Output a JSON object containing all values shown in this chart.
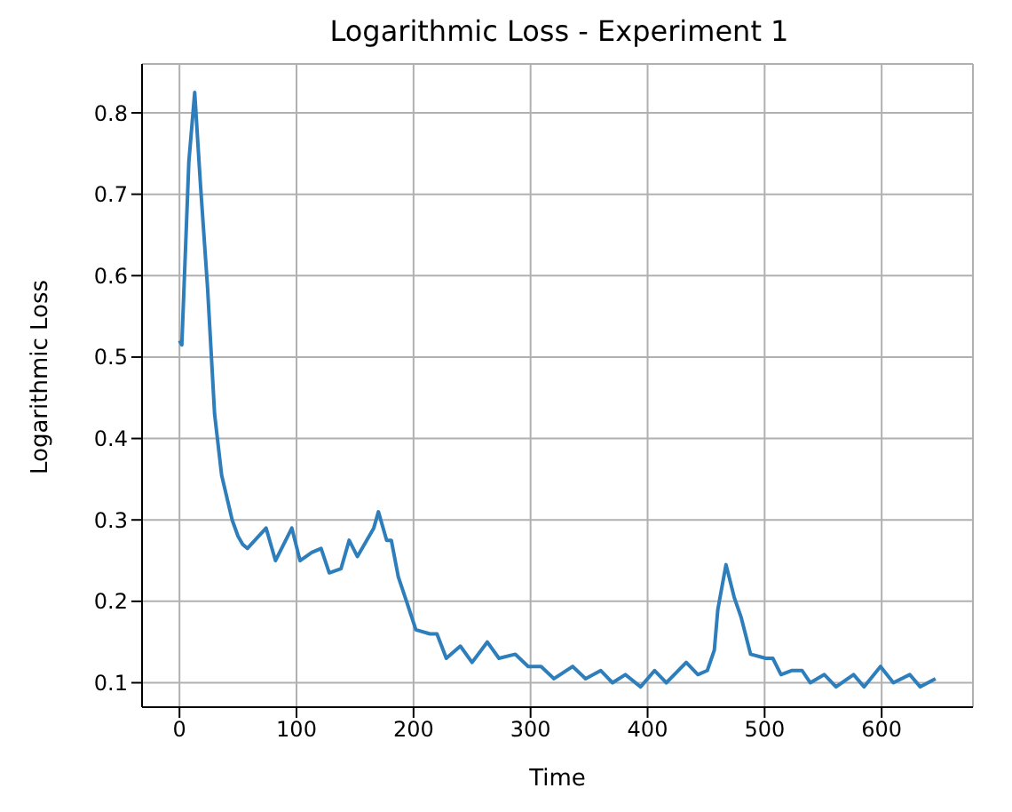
{
  "chart_data": {
    "type": "line",
    "title": "Logarithmic Loss - Experiment 1",
    "xlabel": "Time",
    "ylabel": "Logarithmic Loss",
    "x": [
      0,
      2,
      8,
      13,
      18,
      24,
      30,
      36,
      45,
      50,
      54,
      58,
      74,
      82,
      96,
      103,
      113,
      121,
      128,
      138,
      145,
      152,
      166,
      170,
      177,
      181,
      187,
      194,
      202,
      214,
      220,
      228,
      240,
      250,
      263,
      273,
      287,
      298,
      309,
      320,
      336,
      347,
      360,
      370,
      381,
      394,
      406,
      416,
      433,
      443,
      451,
      457,
      460,
      467,
      474,
      480,
      488,
      501,
      507,
      514,
      523,
      532,
      539,
      551,
      561,
      576,
      585,
      599,
      610,
      624,
      633,
      646
    ],
    "series": [
      {
        "color": "#2e7ebc",
        "values": [
          0.52,
          0.515,
          0.74,
          0.825,
          0.71,
          0.585,
          0.43,
          0.355,
          0.3,
          0.28,
          0.27,
          0.265,
          0.29,
          0.25,
          0.29,
          0.25,
          0.26,
          0.265,
          0.235,
          0.24,
          0.275,
          0.255,
          0.29,
          0.31,
          0.275,
          0.275,
          0.23,
          0.2,
          0.165,
          0.16,
          0.16,
          0.13,
          0.145,
          0.125,
          0.15,
          0.13,
          0.135,
          0.12,
          0.12,
          0.105,
          0.12,
          0.105,
          0.115,
          0.1,
          0.11,
          0.095,
          0.115,
          0.1,
          0.125,
          0.11,
          0.115,
          0.14,
          0.19,
          0.245,
          0.205,
          0.18,
          0.135,
          0.13,
          0.13,
          0.11,
          0.115,
          0.115,
          0.1,
          0.11,
          0.095,
          0.11,
          0.095,
          0.12,
          0.1,
          0.11,
          0.095,
          0.105
        ]
      }
    ],
    "xlim": [
      -32,
      678
    ],
    "ylim": [
      0.07,
      0.86
    ],
    "xticks": [
      0,
      100,
      200,
      300,
      400,
      500,
      600
    ],
    "yticks": [
      0.1,
      0.2,
      0.3,
      0.4,
      0.5,
      0.6,
      0.7,
      0.8
    ],
    "grid": true,
    "legend": false,
    "marker": "none",
    "line_style": "solid"
  }
}
